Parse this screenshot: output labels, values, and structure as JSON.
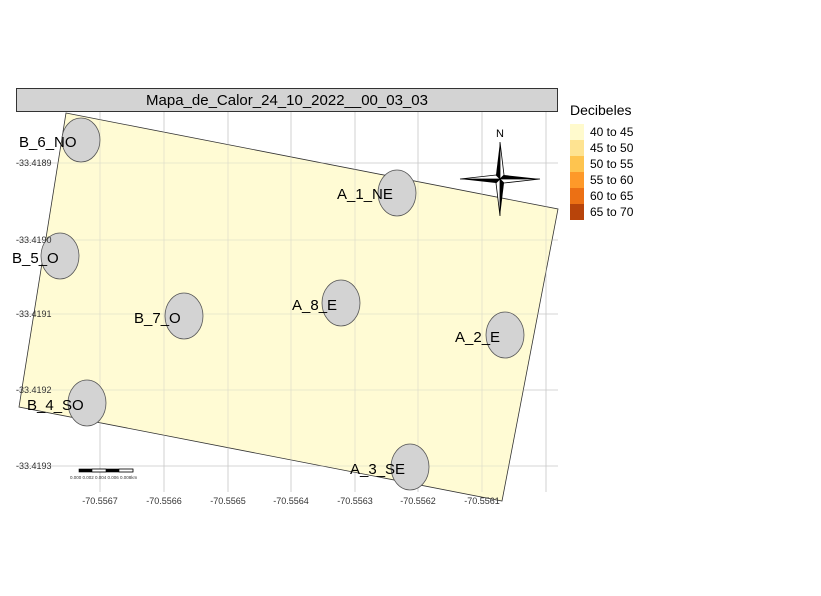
{
  "map": {
    "title": "Mapa_de_Calor_24_10_2022__00_03_03",
    "legend": {
      "title": "Decibeles",
      "items": [
        {
          "label": "40 to 45",
          "color": "#fffacd"
        },
        {
          "label": "45 to 50",
          "color": "#fee391"
        },
        {
          "label": "50 to 55",
          "color": "#fec44f"
        },
        {
          "label": "55 to 60",
          "color": "#fe9929"
        },
        {
          "label": "60 to 65",
          "color": "#ec7014"
        },
        {
          "label": "65 to 70",
          "color": "#b8440a"
        }
      ]
    },
    "north_label": "N",
    "lat_ticks": [
      "-33.4189",
      "-33.4190",
      "-33.4191",
      "-33.4192",
      "-33.4193"
    ],
    "lon_ticks": [
      "-70.5567",
      "-70.5566",
      "-70.5565",
      "-70.5564",
      "-70.5563",
      "-70.5562",
      "-70.5561"
    ],
    "scale_bar_label": "0.000 0.002 0.004 0.006 0.008km",
    "points": [
      {
        "name": "B_6_NO"
      },
      {
        "name": "A_1_NE"
      },
      {
        "name": "B_5_O"
      },
      {
        "name": "B_7_O"
      },
      {
        "name": "A_8_E"
      },
      {
        "name": "A_2_E"
      },
      {
        "name": "B_4_SO"
      },
      {
        "name": "A_3_SE"
      }
    ],
    "colors": {
      "heat_fill": "#fffacd",
      "point_fill": "#d3d3d3",
      "grid": "#d0d0d0"
    }
  }
}
